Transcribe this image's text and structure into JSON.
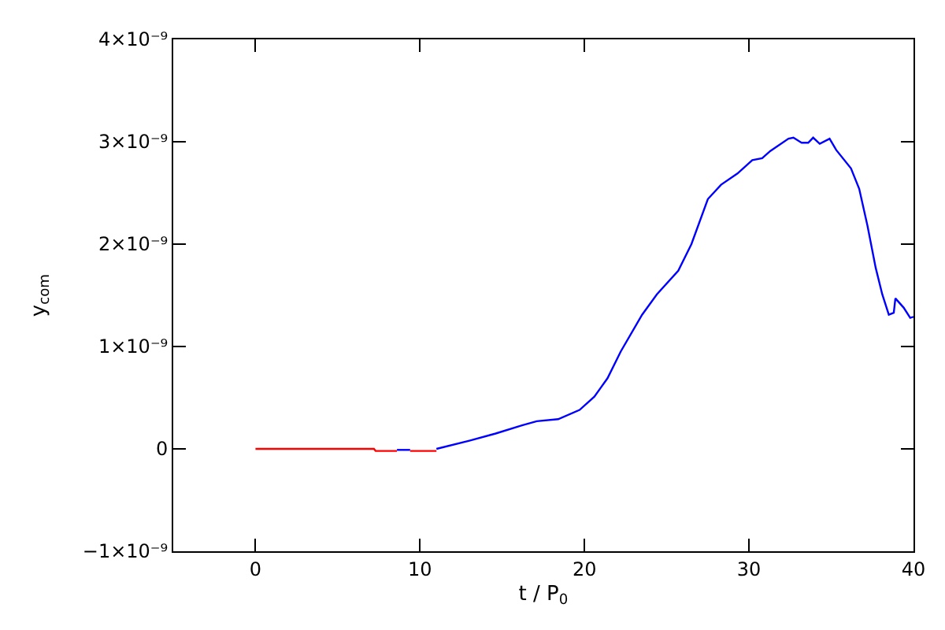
{
  "chart_data": {
    "type": "line",
    "xlabel": "t / P$_{0}$",
    "ylabel": "y$_{com}$",
    "xlim": [
      -5,
      40
    ],
    "xticks": [
      0,
      10,
      20,
      30,
      40
    ],
    "ylim": [
      -1e-09,
      4e-09
    ],
    "yticks": [
      {
        "value": -1e-09,
        "label": "−1×10⁻⁹"
      },
      0,
      {
        "value": 1e-09,
        "label": "1×10⁻⁹"
      },
      {
        "value": 2e-09,
        "label": "2×10⁻⁹"
      },
      {
        "value": 3e-09,
        "label": "3×10⁻⁹"
      },
      {
        "value": 4e-09,
        "label": "4×10⁻⁹"
      }
    ],
    "series": [
      {
        "color": "#0000ff",
        "x": [
          8.6,
          9.4,
          10.0,
          11.0,
          13.0,
          14.6,
          16.2,
          17.1,
          18.4,
          19.7,
          20.6,
          21.4,
          22.2,
          23.5,
          24.4,
          25.7,
          26.5,
          27.5,
          28.3,
          29.3,
          30.2,
          30.8,
          31.3,
          32.4,
          32.7,
          33.2,
          33.6,
          33.9,
          34.3,
          34.9,
          35.3,
          36.2,
          36.7,
          37.2,
          37.7,
          38.1,
          38.5,
          38.8,
          38.9,
          39.4,
          39.8,
          40.0
        ],
        "values": [
          -1e-11,
          -1e-11,
          null,
          0,
          8e-11,
          1.5e-10,
          2.3e-10,
          2.7e-10,
          2.9e-10,
          3.8e-10,
          5.1e-10,
          6.9e-10,
          9.5e-10,
          1.31e-09,
          1.51e-09,
          1.74e-09,
          2e-09,
          2.44e-09,
          2.58e-09,
          2.69e-09,
          2.82e-09,
          2.84e-09,
          2.91e-09,
          3.03e-09,
          3.04e-09,
          2.99e-09,
          2.99e-09,
          3.04e-09,
          2.98e-09,
          3.03e-09,
          2.92e-09,
          2.74e-09,
          2.54e-09,
          2.18e-09,
          1.77e-09,
          1.51e-09,
          1.31e-09,
          1.33e-09,
          1.47e-09,
          1.38e-09,
          1.28e-09,
          1.29e-09
        ]
      },
      {
        "color": "#ff0000",
        "x": [
          0,
          7.2,
          7.3,
          8.6,
          9.0,
          9.4,
          11.0
        ],
        "values": [
          0,
          0,
          -2e-11,
          -2e-11,
          null,
          -2e-11,
          -2e-11
        ]
      }
    ]
  }
}
